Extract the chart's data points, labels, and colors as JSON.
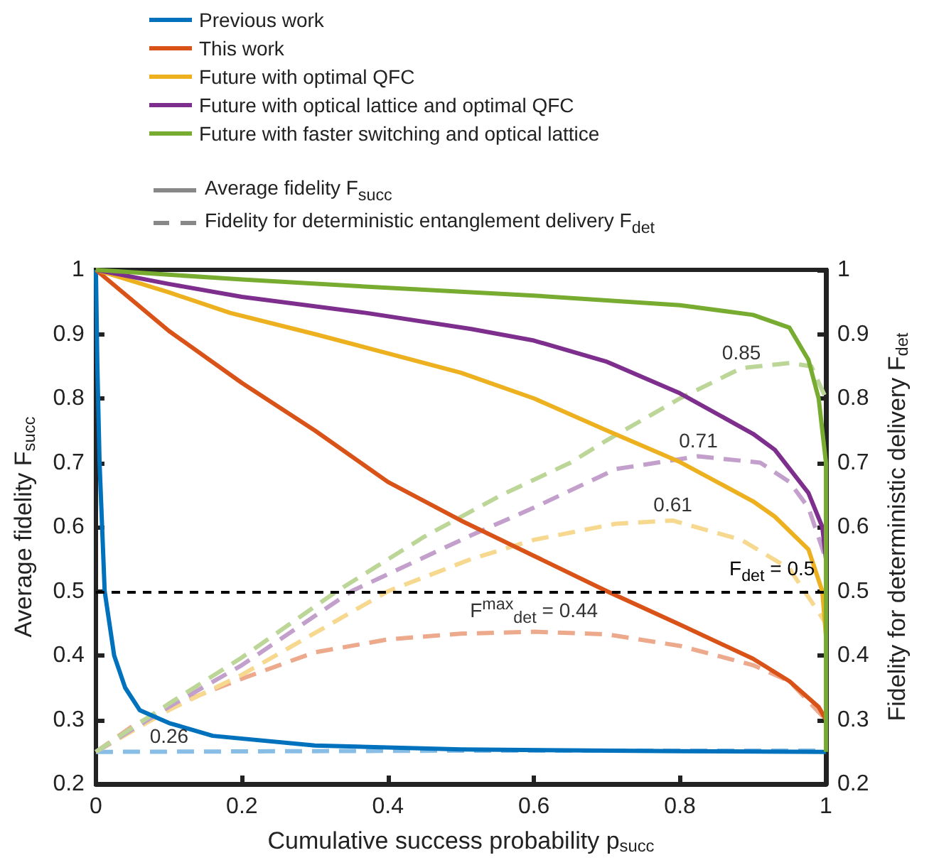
{
  "chart_data": {
    "type": "line",
    "xlabel": "Cumulative success probability p$_{succ}$",
    "ylabel": "Average fidelity F$_{succ}$",
    "y2label": "Fidelity for deterministic delivery F$_{det}$",
    "xlim": [
      0,
      1
    ],
    "xticks": [
      0,
      0.2,
      0.4,
      0.6,
      0.8,
      1
    ],
    "ylim": [
      0.2,
      1
    ],
    "yticks": [
      0.2,
      0.3,
      0.4,
      0.5,
      0.6,
      0.7,
      0.8,
      0.9,
      1
    ],
    "y2lim": [
      0.2,
      1
    ],
    "y2ticks": [
      0.2,
      0.3,
      0.4,
      0.5,
      0.6,
      0.7,
      0.8,
      0.9,
      1
    ],
    "grid": false,
    "legend": "top left",
    "marker": "none",
    "series": [
      {
        "name": "Previous work",
        "color": "#0072bd",
        "line_style": "solid",
        "x": [
          0,
          0.002,
          0.005,
          0.012,
          0.025,
          0.04,
          0.06,
          0.1,
          0.16,
          0.3,
          0.5,
          0.8,
          1
        ],
        "values": [
          1,
          0.85,
          0.7,
          0.5,
          0.4,
          0.35,
          0.315,
          0.295,
          0.275,
          0.26,
          0.254,
          0.251,
          0.25
        ]
      },
      {
        "name": "This work",
        "color": "#d95319",
        "line_style": "solid",
        "x": [
          0,
          0.1,
          0.2,
          0.3,
          0.4,
          0.5,
          0.6,
          0.7,
          0.8,
          0.9,
          0.95,
          0.99,
          1
        ],
        "values": [
          1,
          0.905,
          0.824,
          0.75,
          0.67,
          0.61,
          0.555,
          0.5,
          0.448,
          0.395,
          0.36,
          0.32,
          0.3
        ]
      },
      {
        "name": "Future with optimal QFC",
        "color": "#edb120",
        "line_style": "solid",
        "x": [
          0,
          0.1,
          0.184,
          0.3,
          0.4,
          0.5,
          0.6,
          0.7,
          0.8,
          0.9,
          0.93,
          0.976,
          0.995,
          1
        ],
        "values": [
          1,
          0.965,
          0.933,
          0.9,
          0.87,
          0.84,
          0.8,
          0.75,
          0.701,
          0.64,
          0.616,
          0.565,
          0.5,
          0.43
        ]
      },
      {
        "name": "Future with optical lattice and optimal QFC",
        "color": "#7e2f8e",
        "line_style": "solid",
        "x": [
          0,
          0.1,
          0.2,
          0.37,
          0.514,
          0.6,
          0.7,
          0.8,
          0.9,
          0.93,
          0.976,
          0.995,
          1
        ],
        "values": [
          1,
          0.978,
          0.958,
          0.933,
          0.908,
          0.89,
          0.857,
          0.808,
          0.745,
          0.72,
          0.653,
          0.6,
          0.55
        ]
      },
      {
        "name": "Future with faster switching and optical lattice",
        "color": "#77ac30",
        "line_style": "solid",
        "x": [
          0,
          0.2,
          0.4,
          0.6,
          0.8,
          0.9,
          0.95,
          0.976,
          0.99,
          1,
          1
        ],
        "values": [
          1,
          0.985,
          0.972,
          0.96,
          0.945,
          0.93,
          0.91,
          0.86,
          0.8,
          0.7,
          0.25
        ]
      },
      {
        "color": "#88bde6",
        "line_style": "dashed",
        "x": [
          0,
          0.5,
          1
        ],
        "values": [
          0.25,
          0.252,
          0.252
        ]
      },
      {
        "color": "#eda98c",
        "line_style": "dashed",
        "x": [
          0,
          0.05,
          0.1,
          0.2,
          0.3,
          0.4,
          0.5,
          0.6,
          0.7,
          0.8,
          0.9,
          0.95,
          1
        ],
        "values": [
          0.25,
          0.29,
          0.32,
          0.364,
          0.405,
          0.425,
          0.434,
          0.437,
          0.433,
          0.415,
          0.385,
          0.36,
          0.3
        ]
      },
      {
        "color": "#f6d88f",
        "line_style": "dashed",
        "x": [
          0,
          0.1,
          0.2,
          0.4,
          0.514,
          0.6,
          0.712,
          0.79,
          0.884,
          0.95,
          1
        ],
        "values": [
          0.25,
          0.315,
          0.37,
          0.5,
          0.55,
          0.58,
          0.605,
          0.61,
          0.58,
          0.535,
          0.45
        ]
      },
      {
        "color": "#c39fcc",
        "line_style": "dashed",
        "x": [
          0,
          0.1,
          0.2,
          0.35,
          0.514,
          0.6,
          0.712,
          0.825,
          0.91,
          0.95,
          0.976,
          1
        ],
        "values": [
          0.25,
          0.32,
          0.385,
          0.5,
          0.587,
          0.63,
          0.69,
          0.71,
          0.7,
          0.67,
          0.63,
          0.55
        ]
      },
      {
        "color": "#bbd697",
        "line_style": "dashed",
        "x": [
          0,
          0.1,
          0.2,
          0.33,
          0.45,
          0.556,
          0.65,
          0.7,
          0.8,
          0.884,
          0.95,
          0.98,
          1
        ],
        "values": [
          0.25,
          0.325,
          0.397,
          0.5,
          0.585,
          0.65,
          0.7,
          0.735,
          0.8,
          0.847,
          0.855,
          0.85,
          0.8
        ]
      }
    ],
    "ref_lines": [
      {
        "axis": "y",
        "value": 0.5,
        "label": "F$_{det}$ = 0.5",
        "color": "#000000",
        "line_style": "dashed"
      }
    ],
    "annotations": [
      "Average fidelity F$_{succ}$",
      "Fidelity for deterministic entanglement delivery F$_{det}$",
      {
        "text": "0.26",
        "x": 0.1,
        "y": 0.251
      },
      {
        "text": "F$^{max}$$_{det}$ = 0.44",
        "x": 0.6,
        "y": 0.437
      },
      {
        "text": "0.61",
        "x": 0.79,
        "y": 0.61
      },
      {
        "text": "0.71",
        "x": 0.825,
        "y": 0.71
      },
      {
        "text": "0.85",
        "x": 0.884,
        "y": 0.847
      }
    ]
  }
}
